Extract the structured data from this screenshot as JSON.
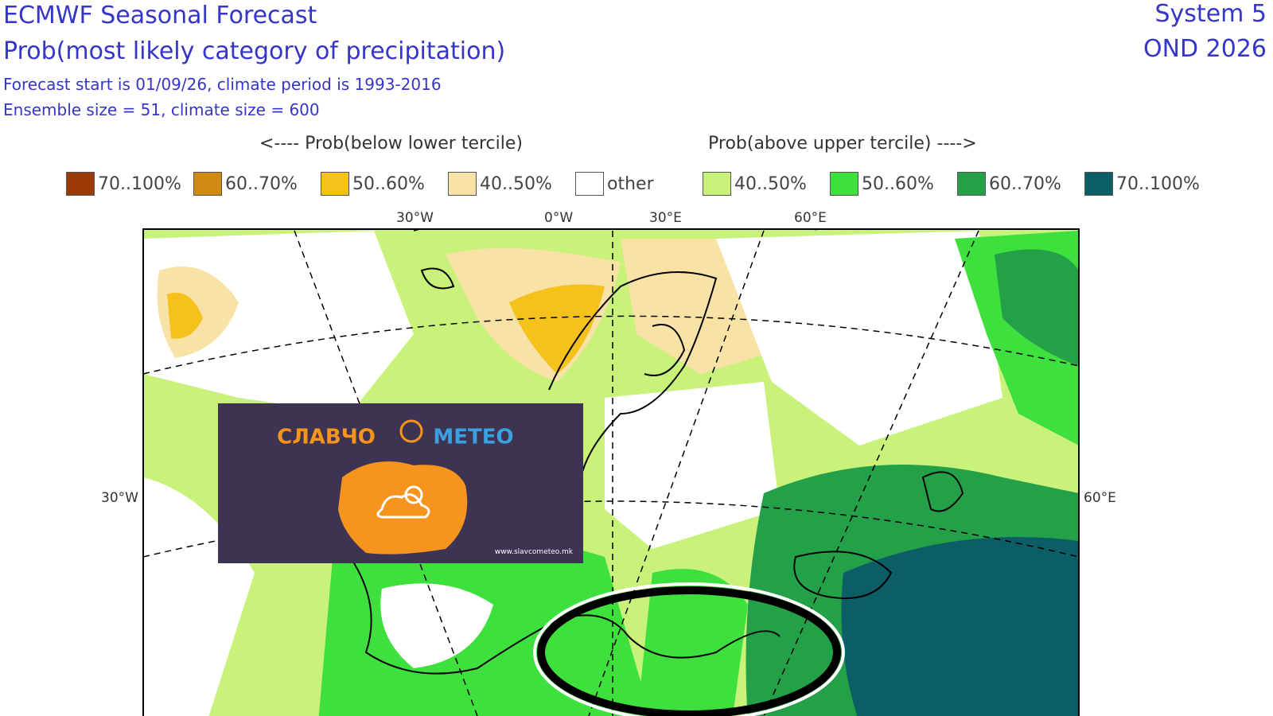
{
  "header": {
    "title": "ECMWF Seasonal Forecast",
    "subtitle": "Prob(most likely category of precipitation)",
    "info": [
      "Forecast start is 01/09/26, climate period is 1993-2016",
      "Ensemble size = 51, climate size = 600"
    ],
    "system": "System 5",
    "season": "OND 2026"
  },
  "legend": {
    "below_heading": "<---- Prob(below lower tercile)",
    "above_heading": "Prob(above upper tercile) ---->",
    "items": [
      {
        "label": "70..100%",
        "color": "#9a3a06"
      },
      {
        "label": "60..70%",
        "color": "#d08a14"
      },
      {
        "label": "50..60%",
        "color": "#f5c21c"
      },
      {
        "label": "40..50%",
        "color": "#f9e2a6"
      },
      {
        "label": "other",
        "color": "#ffffff"
      },
      {
        "label": "40..50%",
        "color": "#c8f27a"
      },
      {
        "label": "50..60%",
        "color": "#3ee03e"
      },
      {
        "label": "60..70%",
        "color": "#23a048"
      },
      {
        "label": "70..100%",
        "color": "#0c5e66"
      }
    ]
  },
  "map": {
    "top_labels": [
      "30°W",
      "0°W",
      "30°E",
      "60°E"
    ],
    "left_label": "30°W",
    "right_label": "60°E"
  },
  "logo": {
    "left": "СЛАВЧО",
    "right": "МЕТЕО",
    "url": "www.slavcometeo.mk"
  }
}
